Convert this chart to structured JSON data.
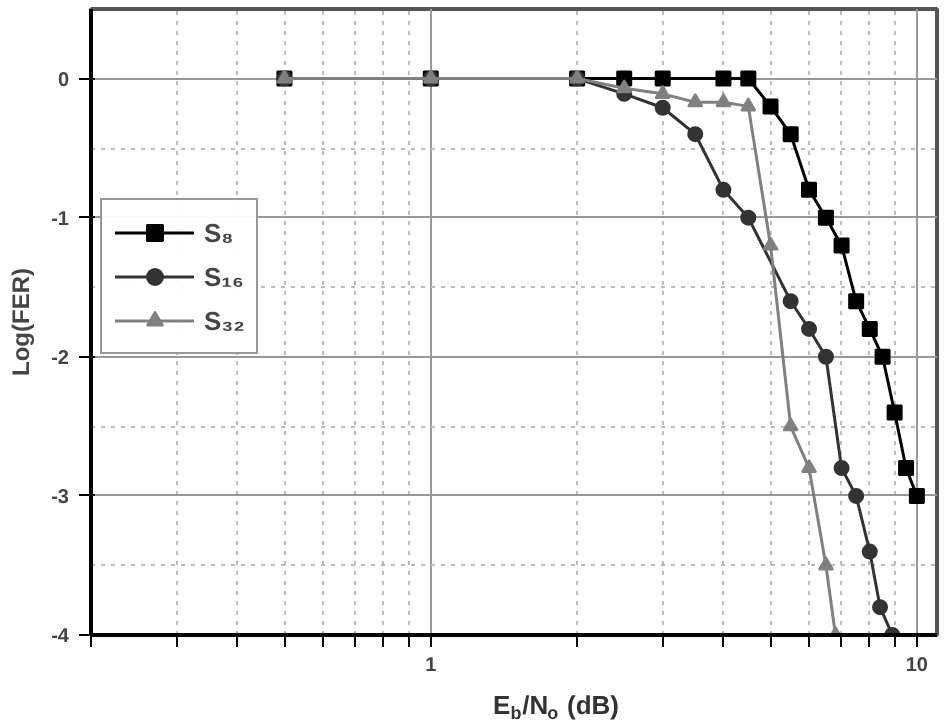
{
  "chart_data": {
    "type": "line",
    "xlabel": "E$_{b}$/N$_{o}$ (dB)",
    "ylabel": "Log(FER)",
    "log": "x",
    "xlim": [
      0.2,
      11
    ],
    "ylim": [
      -4,
      0.5
    ],
    "xticks": [
      {
        "value": 0.2,
        "label": null
      },
      {
        "value": 0.3,
        "label": null
      },
      {
        "value": 0.4,
        "label": null
      },
      {
        "value": 0.5,
        "label": null
      },
      {
        "value": 0.6,
        "label": null
      },
      {
        "value": 0.7,
        "label": null
      },
      {
        "value": 0.8,
        "label": null
      },
      {
        "value": 0.9,
        "label": null
      },
      1,
      {
        "value": 2,
        "label": null
      },
      {
        "value": 3,
        "label": null
      },
      {
        "value": 4,
        "label": null
      },
      {
        "value": 5,
        "label": null
      },
      {
        "value": 6,
        "label": null
      },
      {
        "value": 7,
        "label": null
      },
      {
        "value": 8,
        "label": null
      },
      {
        "value": 9,
        "label": null
      },
      10
    ],
    "yticks": [
      -4,
      -3,
      -2,
      -1,
      0
    ],
    "grid": true,
    "legend": "left",
    "line_style": "solid",
    "series": [
      {
        "name": "S₈",
        "color": "#000000",
        "marker": "square",
        "x": [
          0.5,
          1,
          2,
          2.5,
          3,
          4,
          4.5,
          5,
          5.5,
          6,
          6.5,
          7,
          7.5,
          8,
          8.5,
          9,
          9.5,
          10
        ],
        "values": [
          0,
          0,
          0,
          0,
          0,
          0,
          0,
          -0.2,
          -0.4,
          -0.8,
          -1.0,
          -1.2,
          -1.6,
          -1.8,
          -2.0,
          -2.4,
          -2.8,
          -3.0
        ]
      },
      {
        "name": "S₁₆",
        "color": "#333333",
        "marker": "circle",
        "x": [
          0.5,
          1,
          2,
          2.5,
          3,
          3.5,
          4,
          4.5,
          5.5,
          6,
          6.5,
          7,
          7.5,
          8,
          8.4,
          8.9
        ],
        "values": [
          0,
          0,
          0,
          -0.11,
          -0.21,
          -0.4,
          -0.8,
          -1.0,
          -1.6,
          -1.8,
          -2.0,
          -2.8,
          -3.0,
          -3.4,
          -3.8,
          -4.0
        ]
      },
      {
        "name": "S₃₂",
        "color": "#808080",
        "marker": "triangle",
        "x": [
          0.5,
          1,
          2,
          2.5,
          3,
          3.5,
          4,
          4.5,
          5,
          5.5,
          6,
          6.5,
          6.8
        ],
        "values": [
          0,
          0,
          0,
          -0.07,
          -0.11,
          -0.17,
          -0.17,
          -0.2,
          -1.2,
          -2.5,
          -2.8,
          -3.5,
          -4.0
        ]
      }
    ]
  }
}
